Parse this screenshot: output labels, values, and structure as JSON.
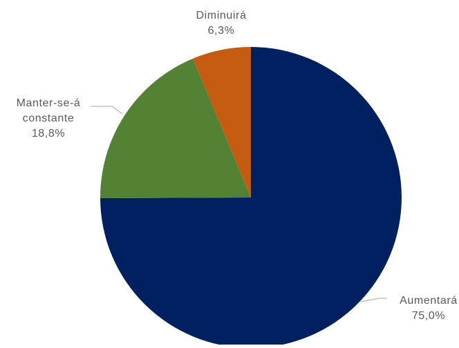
{
  "chart_data": {
    "type": "pie",
    "title": "",
    "categories": [
      "Aumentará",
      "Manter-se-á constante",
      "Diminuirá"
    ],
    "values": [
      75.0,
      18.8,
      6.3
    ],
    "colors": [
      "#002060",
      "#548235",
      "#C55A11"
    ],
    "start_angle": "12 o'clock",
    "direction": "clockwise",
    "legend": "none",
    "data_labels": [
      {
        "lines": [
          "Aumentará",
          "75,0%"
        ]
      },
      {
        "lines": [
          "Manter-se-á",
          "constante",
          "18,8%"
        ]
      },
      {
        "lines": [
          "Diminuirá",
          "6,3%"
        ]
      }
    ]
  }
}
